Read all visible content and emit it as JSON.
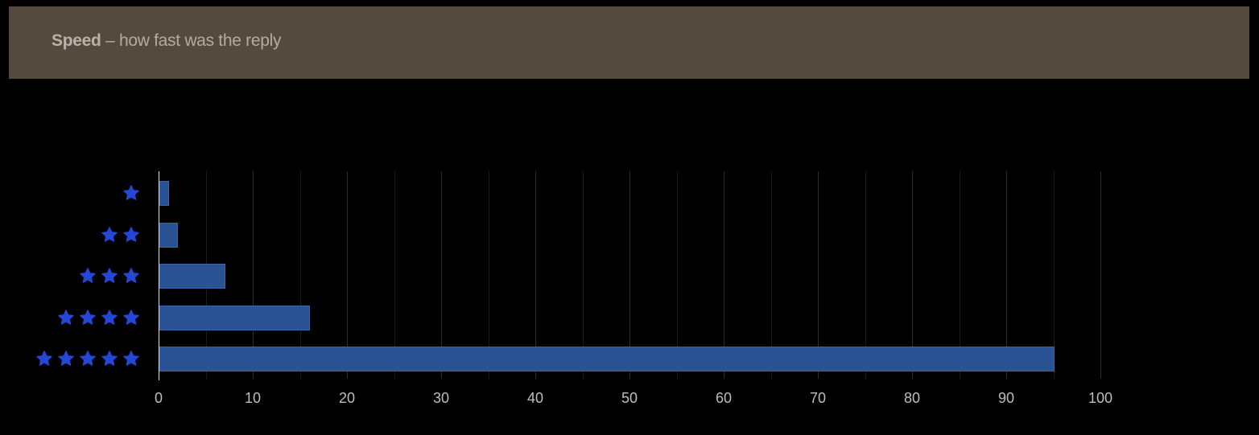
{
  "header": {
    "title_bold": "Speed",
    "title_rest": " – how fast was the reply",
    "background": "#554a3e"
  },
  "chart_data": {
    "type": "bar",
    "orientation": "horizontal",
    "title": "Speed – how fast was the reply",
    "categories": [
      "1 star",
      "2 stars",
      "3 stars",
      "4 stars",
      "5 stars"
    ],
    "values": [
      1,
      2,
      7,
      16,
      95
    ],
    "xlabel": "",
    "ylabel": "",
    "xlim": [
      0,
      100
    ],
    "x_ticks": [
      "0",
      "10",
      "20",
      "30",
      "40",
      "50",
      "60",
      "70",
      "80",
      "90",
      "100"
    ],
    "grid": true,
    "bar_color": "#2b5394",
    "star_color": "#2447d6",
    "legend": null
  }
}
